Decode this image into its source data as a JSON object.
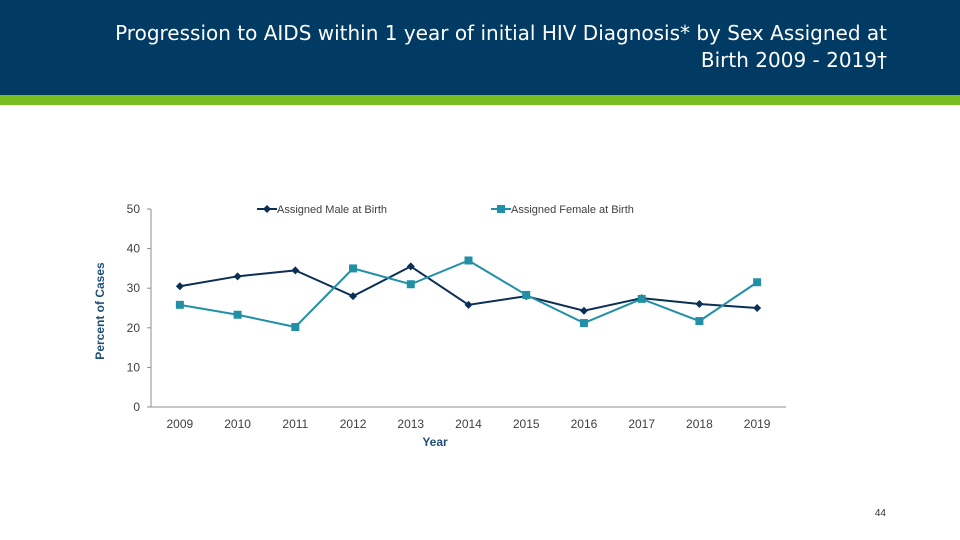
{
  "slide": {
    "title": "Progression to AIDS within 1 year of initial HIV Diagnosis* by Sex Assigned at Birth 2009 - 2019†",
    "page_number": "44"
  },
  "colors": {
    "header": "#013a63",
    "accent": "#78be20",
    "male": "#0b2f55",
    "female": "#2190a6",
    "axis_label": "#1f4e79"
  },
  "chart_data": {
    "type": "line",
    "title": "",
    "xlabel": "Year",
    "ylabel": "Percent of Cases",
    "categories": [
      "2009",
      "2010",
      "2011",
      "2012",
      "2013",
      "2014",
      "2015",
      "2016",
      "2017",
      "2018",
      "2019"
    ],
    "yticks": [
      "0",
      "10",
      "20",
      "30",
      "40",
      "50"
    ],
    "ylim": [
      0,
      50
    ],
    "grid": false,
    "legend_position": "top",
    "series": [
      {
        "name": "Assigned Male at Birth",
        "marker": "diamond",
        "values": [
          30.5,
          33.0,
          34.5,
          28.0,
          35.5,
          25.8,
          28.0,
          24.3,
          27.5,
          26.0,
          25.0
        ]
      },
      {
        "name": "Assigned Female at Birth",
        "marker": "square",
        "values": [
          25.8,
          23.3,
          20.2,
          35.0,
          31.0,
          37.0,
          28.3,
          21.2,
          27.3,
          21.7,
          31.5
        ]
      }
    ]
  }
}
